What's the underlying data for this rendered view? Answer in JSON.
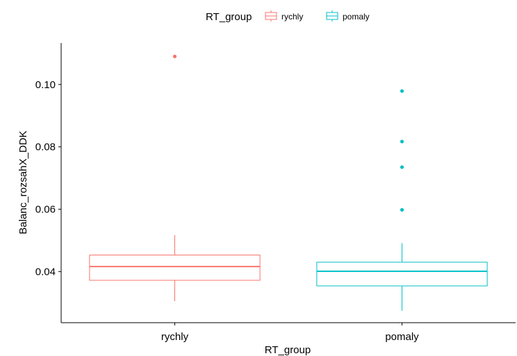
{
  "chart_data": {
    "type": "box",
    "xlabel": "RT_group",
    "ylabel": "Balanc_rozsahX_DDK",
    "categories": [
      "rychly",
      "pomaly"
    ],
    "legend": {
      "title": "RT_group",
      "position": "top",
      "entries": [
        "rychly",
        "pomaly"
      ]
    },
    "ylim": [
      0.0236,
      0.1133
    ],
    "yticks": [
      0.04,
      0.06,
      0.08,
      0.1
    ],
    "ytick_labels": [
      "0.04",
      "0.06",
      "0.08",
      "0.10"
    ],
    "grid": false,
    "series": [
      {
        "name": "rychly",
        "color": "#F8766D",
        "whisker_low": 0.0305,
        "q1": 0.0372,
        "median": 0.0416,
        "q3": 0.0453,
        "whisker_high": 0.0517,
        "outliers": [
          0.109
        ]
      },
      {
        "name": "pomaly",
        "color": "#00BFC4",
        "whisker_low": 0.0274,
        "q1": 0.0354,
        "median": 0.0401,
        "q3": 0.043,
        "whisker_high": 0.0491,
        "outliers": [
          0.0598,
          0.0735,
          0.0817,
          0.0979
        ]
      }
    ]
  }
}
